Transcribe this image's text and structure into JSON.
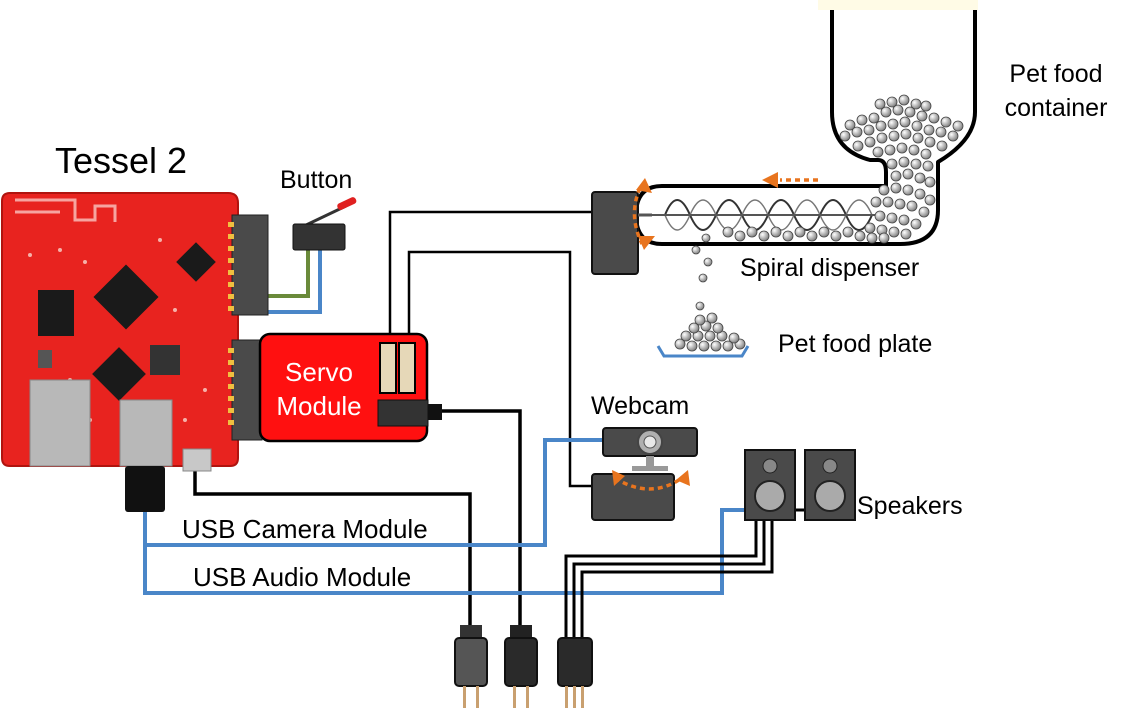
{
  "labels": {
    "tessel": "Tessel 2",
    "button": "Button",
    "servo_line1": "Servo",
    "servo_line2": "Module",
    "webcam": "Webcam",
    "container_line1": "Pet food",
    "container_line2": "container",
    "spiral": "Spiral dispenser",
    "plate": "Pet food plate",
    "speakers": "Speakers",
    "usb_camera": "USB Camera Module",
    "usb_audio": "USB Audio Module"
  },
  "colors": {
    "board_red": "#e8231f",
    "servo_red": "#ff1010",
    "usb_blue": "#4a86c8",
    "button_green": "#6a8a3a",
    "arrow_orange": "#e8741e",
    "device_gray": "#4a4a4a",
    "port_gray": "#b8b8b8"
  }
}
